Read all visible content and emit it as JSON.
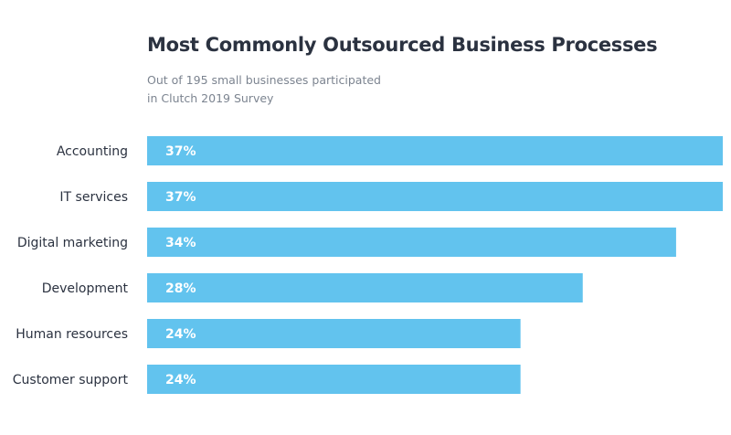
{
  "chart_data": {
    "type": "bar",
    "orientation": "horizontal",
    "title": "Most Commonly Outsourced Business Processes",
    "subtitle_lines": [
      "Out of 195 small businesses participated",
      "in Clutch 2019 Survey"
    ],
    "categories": [
      "Accounting",
      "IT services",
      "Digital marketing",
      "Development",
      "Human resources",
      "Customer support"
    ],
    "values": [
      37,
      37,
      34,
      28,
      24,
      24
    ],
    "data_labels": [
      "37%",
      "37%",
      "34%",
      "28%",
      "24%",
      "24%"
    ],
    "xlabel": "",
    "ylabel": "",
    "xlim": [
      0,
      37
    ],
    "grid": false,
    "bar_color": "#62c3ee"
  }
}
